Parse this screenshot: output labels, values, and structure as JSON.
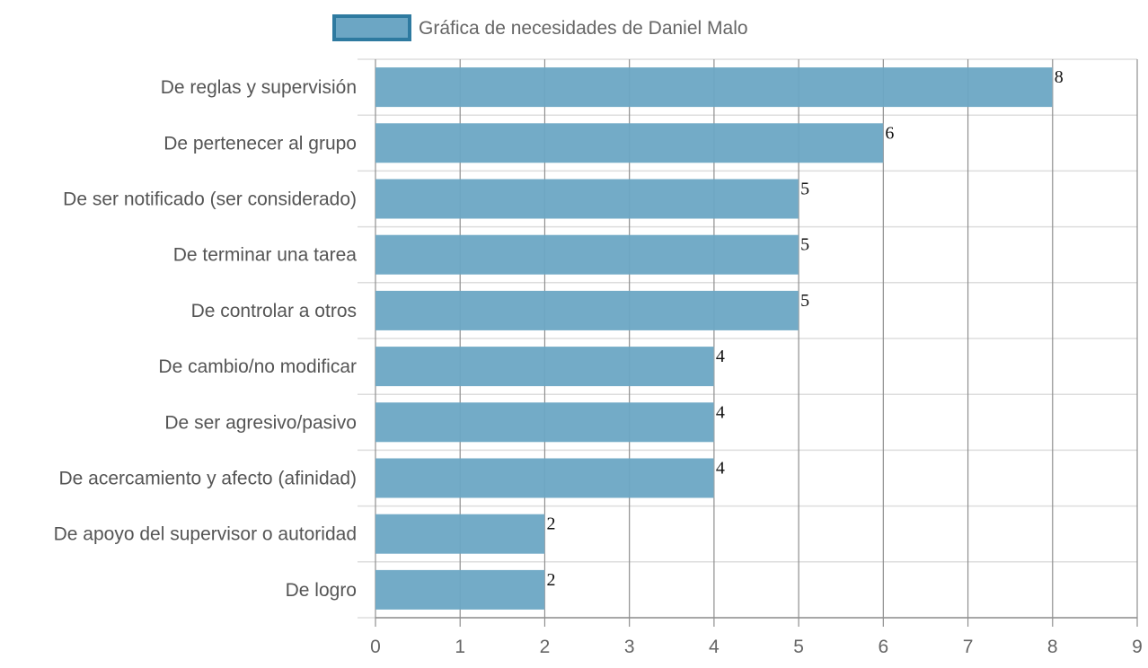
{
  "chart_data": {
    "type": "bar",
    "orientation": "horizontal",
    "categories": [
      "De reglas y supervisión",
      "De pertenecer al grupo",
      "De ser notificado (ser considerado)",
      "De terminar una tarea",
      "De controlar a otros",
      "De cambio/no modificar",
      "De ser agresivo/pasivo",
      "De acercamiento y afecto (afinidad)",
      "De apoyo del supervisor o autoridad",
      "De logro"
    ],
    "series": [
      {
        "name": "Gráfica de necesidades de Daniel Malo",
        "values": [
          8,
          6,
          5,
          5,
          5,
          4,
          4,
          4,
          2,
          2
        ]
      }
    ],
    "xlim": [
      0,
      9
    ],
    "xticks": [
      "0",
      "1",
      "2",
      "3",
      "4",
      "5",
      "6",
      "7",
      "8",
      "9"
    ],
    "grid": true,
    "legend_position": "top-center",
    "colors": {
      "bar_fill": "#6ca6c4",
      "bar_border": "#2e7aa0",
      "grid_major": "#8f8f8f",
      "grid_minor": "#dddddd"
    }
  }
}
